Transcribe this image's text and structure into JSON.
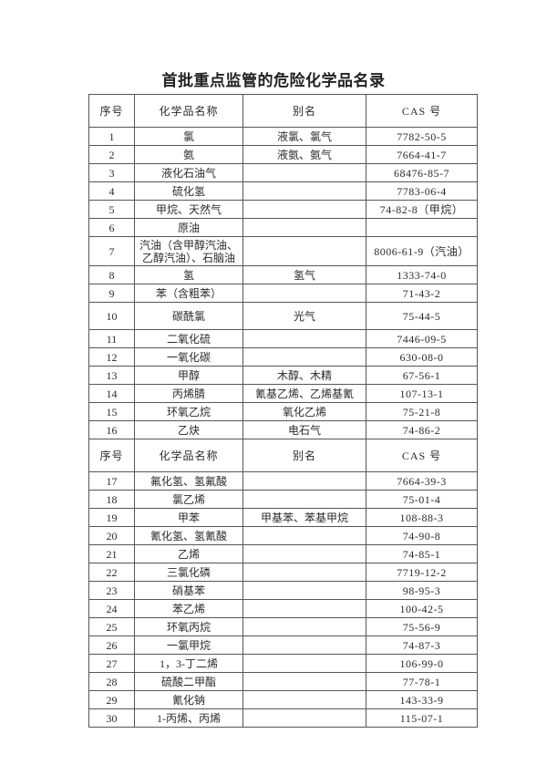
{
  "title": "首批重点监管的危险化学品名录",
  "table": {
    "rows": [
      {
        "type": "header",
        "cells": [
          "序号",
          "化学品名称",
          "别名",
          "CAS 号"
        ]
      },
      {
        "type": "row",
        "cells": [
          "1",
          "氯",
          "液氯、氯气",
          "7782-50-5"
        ]
      },
      {
        "type": "row",
        "cells": [
          "2",
          "氨",
          "液氨、氨气",
          "7664-41-7"
        ]
      },
      {
        "type": "row",
        "cells": [
          "3",
          "液化石油气",
          "",
          "68476-85-7"
        ]
      },
      {
        "type": "row",
        "cells": [
          "4",
          "硫化氢",
          "",
          "7783-06-4"
        ]
      },
      {
        "type": "row",
        "cells": [
          "5",
          "甲烷、天然气",
          "",
          "74-82-8（甲烷）"
        ]
      },
      {
        "type": "row",
        "cells": [
          "6",
          "原油",
          "",
          ""
        ]
      },
      {
        "type": "row",
        "size": "lg",
        "cells": [
          "7",
          "汽油（含甲醇汽油、\n乙醇汽油）、石脑油",
          "",
          "8006-61-9（汽油）"
        ]
      },
      {
        "type": "row",
        "cells": [
          "8",
          "氢",
          "氢气",
          "1333-74-0"
        ]
      },
      {
        "type": "row",
        "cells": [
          "9",
          "苯（含粗苯）",
          "",
          "71-43-2"
        ]
      },
      {
        "type": "row",
        "size": "md",
        "cells": [
          "10",
          "碳酰氯",
          "光气",
          "75-44-5"
        ]
      },
      {
        "type": "row",
        "cells": [
          "11",
          "二氧化硫",
          "",
          "7446-09-5"
        ]
      },
      {
        "type": "row",
        "cells": [
          "12",
          "一氧化碳",
          "",
          "630-08-0"
        ]
      },
      {
        "type": "row",
        "cells": [
          "13",
          "甲醇",
          "木醇、木精",
          "67-56-1"
        ]
      },
      {
        "type": "row",
        "cells": [
          "14",
          "丙烯腈",
          "氰基乙烯、乙烯基氰",
          "107-13-1"
        ]
      },
      {
        "type": "row",
        "cells": [
          "15",
          "环氧乙烷",
          "氧化乙烯",
          "75-21-8"
        ]
      },
      {
        "type": "row",
        "cells": [
          "16",
          "乙炔",
          "电石气",
          "74-86-2"
        ]
      },
      {
        "type": "header",
        "cells": [
          "序号",
          "化学品名称",
          "别名",
          "CAS 号"
        ]
      },
      {
        "type": "row",
        "cells": [
          "17",
          "氟化氢、氢氟酸",
          "",
          "7664-39-3"
        ]
      },
      {
        "type": "row",
        "cells": [
          "18",
          "氯乙烯",
          "",
          "75-01-4"
        ]
      },
      {
        "type": "row",
        "cells": [
          "19",
          "甲苯",
          "甲基苯、苯基甲烷",
          "108-88-3"
        ]
      },
      {
        "type": "row",
        "cells": [
          "20",
          "氰化氢、氢氰酸",
          "",
          "74-90-8"
        ]
      },
      {
        "type": "row",
        "cells": [
          "21",
          "乙烯",
          "",
          "74-85-1"
        ]
      },
      {
        "type": "row",
        "cells": [
          "22",
          "三氯化磷",
          "",
          "7719-12-2"
        ]
      },
      {
        "type": "row",
        "cells": [
          "23",
          "硝基苯",
          "",
          "98-95-3"
        ]
      },
      {
        "type": "row",
        "cells": [
          "24",
          "苯乙烯",
          "",
          "100-42-5"
        ]
      },
      {
        "type": "row",
        "cells": [
          "25",
          "环氧丙烷",
          "",
          "75-56-9"
        ]
      },
      {
        "type": "row",
        "cells": [
          "26",
          "一氯甲烷",
          "",
          "74-87-3"
        ]
      },
      {
        "type": "row",
        "cells": [
          "27",
          "1，3-丁二烯",
          "",
          "106-99-0"
        ]
      },
      {
        "type": "row",
        "cells": [
          "28",
          "硫酸二甲酯",
          "",
          "77-78-1"
        ]
      },
      {
        "type": "row",
        "cells": [
          "29",
          "氰化钠",
          "",
          "143-33-9"
        ]
      },
      {
        "type": "row",
        "cells": [
          "30",
          "1-丙烯、丙烯",
          "",
          "115-07-1"
        ]
      }
    ]
  }
}
